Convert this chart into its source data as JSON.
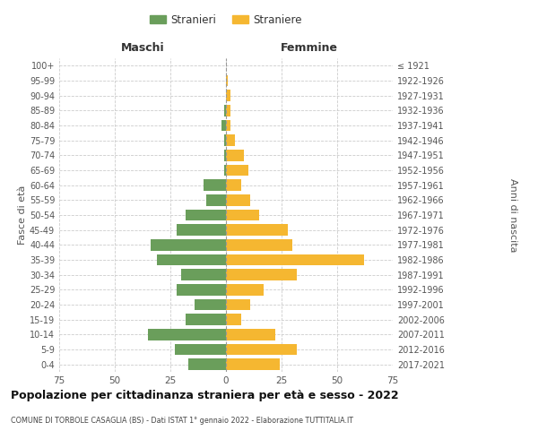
{
  "age_groups": [
    "0-4",
    "5-9",
    "10-14",
    "15-19",
    "20-24",
    "25-29",
    "30-34",
    "35-39",
    "40-44",
    "45-49",
    "50-54",
    "55-59",
    "60-64",
    "65-69",
    "70-74",
    "75-79",
    "80-84",
    "85-89",
    "90-94",
    "95-99",
    "100+"
  ],
  "birth_years": [
    "2017-2021",
    "2012-2016",
    "2007-2011",
    "2002-2006",
    "1997-2001",
    "1992-1996",
    "1987-1991",
    "1982-1986",
    "1977-1981",
    "1972-1976",
    "1967-1971",
    "1962-1966",
    "1957-1961",
    "1952-1956",
    "1947-1951",
    "1942-1946",
    "1937-1941",
    "1932-1936",
    "1927-1931",
    "1922-1926",
    "≤ 1921"
  ],
  "maschi": [
    17,
    23,
    35,
    18,
    14,
    22,
    20,
    31,
    34,
    22,
    18,
    9,
    10,
    1,
    1,
    1,
    2,
    1,
    0,
    0,
    0
  ],
  "femmine": [
    24,
    32,
    22,
    7,
    11,
    17,
    32,
    62,
    30,
    28,
    15,
    11,
    7,
    10,
    8,
    4,
    2,
    2,
    2,
    1,
    0
  ],
  "maschi_color": "#6a9e5b",
  "femmine_color": "#f5b731",
  "title": "Popolazione per cittadinanza straniera per età e sesso - 2022",
  "subtitle": "COMUNE DI TORBOLE CASAGLIA (BS) - Dati ISTAT 1° gennaio 2022 - Elaborazione TUTTITALIA.IT",
  "xlabel_left": "Maschi",
  "xlabel_right": "Femmine",
  "ylabel_left": "Fasce di età",
  "ylabel_right": "Anni di nascita",
  "xlim": 75,
  "legend_stranieri": "Stranieri",
  "legend_straniere": "Straniere",
  "bg_color": "#ffffff",
  "grid_color": "#cccccc",
  "bar_height": 0.75
}
